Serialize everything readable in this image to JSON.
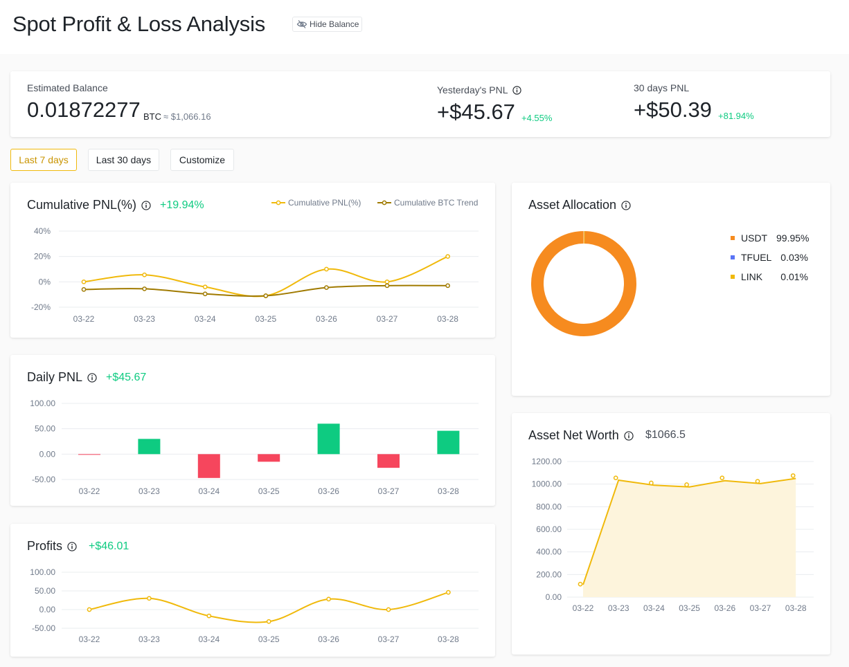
{
  "header": {
    "title": "Spot Profit & Loss Analysis",
    "hide_balance": "Hide Balance"
  },
  "summary": {
    "estimated_balance_label": "Estimated Balance",
    "balance_btc": "0.01872277",
    "balance_unit": "BTC",
    "balance_usd": "≈ $1,066.16",
    "yesterday_label": "Yesterday's PNL",
    "yesterday_value": "+$45.67",
    "yesterday_pct": "+4.55%",
    "days30_label": "30 days PNL",
    "days30_value": "+$50.39",
    "days30_pct": "+81.94%"
  },
  "ranges": [
    "Last 7 days",
    "Last 30 days",
    "Customize"
  ],
  "colors": {
    "accent": "#f0b90b",
    "btc_trend": "#a07a00",
    "up": "#0ecb81",
    "down": "#f6465d",
    "usdt": "#f68b1f",
    "tfuel": "#5a74f5",
    "link": "#f0b90b"
  },
  "cumulative": {
    "title": "Cumulative PNL(%)",
    "value": "+19.94%",
    "legend": [
      "Cumulative PNL(%)",
      "Cumulative BTC Trend"
    ]
  },
  "daily": {
    "title": "Daily PNL",
    "value": "+$45.67"
  },
  "profits": {
    "title": "Profits",
    "value": "+$46.01"
  },
  "allocation": {
    "title": "Asset Allocation",
    "items": [
      {
        "name": "USDT",
        "pct": "99.95%"
      },
      {
        "name": "TFUEL",
        "pct": "0.03%"
      },
      {
        "name": "LINK",
        "pct": "0.01%"
      }
    ]
  },
  "networth": {
    "title": "Asset Net Worth",
    "value": "$1066.5"
  },
  "chart_data": [
    {
      "type": "line",
      "categories": [
        "03-22",
        "03-23",
        "03-24",
        "03-25",
        "03-26",
        "03-27",
        "03-28"
      ],
      "y_ticks": [
        "40%",
        "20%",
        "0%",
        "-20%"
      ],
      "ylim": [
        -20,
        40
      ],
      "series": [
        {
          "name": "Cumulative PNL(%)",
          "values": [
            0,
            5.5,
            -4,
            -11,
            10,
            0,
            20
          ]
        },
        {
          "name": "Cumulative BTC Trend",
          "values": [
            -6,
            -5.5,
            -9.5,
            -11,
            -4.5,
            -3,
            -3
          ]
        }
      ]
    },
    {
      "type": "bar",
      "categories": [
        "03-22",
        "03-23",
        "03-24",
        "03-25",
        "03-26",
        "03-27",
        "03-28"
      ],
      "y_ticks": [
        "100.00",
        "50.00",
        "0.00",
        "-50.00"
      ],
      "ylim": [
        -50,
        100
      ],
      "values": [
        -1,
        30,
        -47,
        -15,
        60,
        -27,
        46
      ]
    },
    {
      "type": "line",
      "categories": [
        "03-22",
        "03-23",
        "03-24",
        "03-25",
        "03-26",
        "03-27",
        "03-28"
      ],
      "y_ticks": [
        "100.00",
        "50.00",
        "0.00",
        "-50.00"
      ],
      "ylim": [
        -50,
        100
      ],
      "values": [
        0,
        30,
        -17,
        -32,
        28,
        0,
        46
      ]
    },
    {
      "type": "pie",
      "labels": [
        "USDT",
        "TFUEL",
        "LINK"
      ],
      "values": [
        99.95,
        0.03,
        0.01
      ]
    },
    {
      "type": "area",
      "categories": [
        "03-22",
        "03-23",
        "03-24",
        "03-25",
        "03-26",
        "03-27",
        "03-28"
      ],
      "y_ticks": [
        "1200.00",
        "1000.00",
        "800.00",
        "600.00",
        "400.00",
        "200.00",
        "0.00"
      ],
      "ylim": [
        0,
        1200
      ],
      "values": [
        110,
        1035,
        990,
        975,
        1030,
        1005,
        1050
      ],
      "point_values": [
        115,
        1055,
        1010,
        995,
        1055,
        1025,
        1075
      ]
    }
  ]
}
